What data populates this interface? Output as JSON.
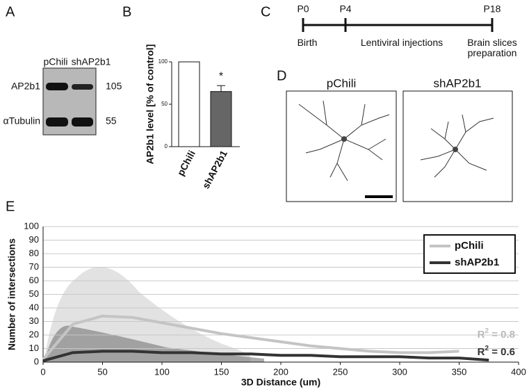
{
  "panel_labels": [
    "A",
    "B",
    "C",
    "D",
    "E"
  ],
  "blot": {
    "lanes": [
      "pChili",
      "shAP2b1"
    ],
    "bands": [
      {
        "name": "AP2b1",
        "size": "105"
      },
      {
        "name": "αTubulin",
        "size": "55"
      }
    ]
  },
  "timeline": {
    "points": [
      {
        "label": "P0",
        "event": "Birth"
      },
      {
        "label": "P4",
        "event": "Lentiviral injections"
      },
      {
        "label": "P18",
        "event": "Brain slices preparation"
      }
    ]
  },
  "images": {
    "titles": [
      "pChili",
      "shAP2b1"
    ]
  },
  "chart_data": [
    {
      "type": "bar",
      "ylabel": "AP2b1 level [% of control]",
      "categories": [
        "pChili",
        "shAP2b1"
      ],
      "values": [
        100,
        65
      ],
      "errors": [
        0,
        7
      ],
      "colors": [
        "#ffffff",
        "#666666"
      ],
      "ylim": [
        0,
        100
      ],
      "yticks": [
        0,
        50,
        100
      ],
      "annotation": "*"
    },
    {
      "type": "line",
      "xlabel": "3D Distance (um)",
      "ylabel": "Number of intersections",
      "xlim": [
        0,
        400
      ],
      "xticks": [
        0,
        50,
        100,
        150,
        200,
        250,
        300,
        350,
        400
      ],
      "ylim": [
        0,
        100
      ],
      "yticks": [
        0,
        10,
        20,
        30,
        40,
        50,
        60,
        70,
        80,
        90,
        100
      ],
      "grid": true,
      "legend": "top-right",
      "series": [
        {
          "name": "pChili",
          "color": "#c4c4c4",
          "x": [
            0,
            25,
            50,
            75,
            100,
            125,
            150,
            175,
            200,
            225,
            250,
            275,
            300,
            325,
            350
          ],
          "values": [
            2,
            28,
            34,
            33,
            29,
            25,
            21,
            18,
            15,
            12,
            10,
            8,
            7,
            7,
            8
          ]
        },
        {
          "name": "shAP2b1",
          "color": "#333333",
          "x": [
            0,
            25,
            50,
            75,
            100,
            125,
            150,
            175,
            200,
            225,
            250,
            275,
            300,
            325,
            350,
            375
          ],
          "values": [
            1,
            7,
            8,
            8,
            7,
            7,
            6,
            6,
            5,
            5,
            4,
            4,
            4,
            3,
            3,
            1.5
          ]
        }
      ],
      "annotations": [
        {
          "base": "R",
          "sup": "2",
          "text": " = 0.8",
          "color": "#bbbbbb"
        },
        {
          "base": "R",
          "sup": "2",
          "text": " = 0.6",
          "color": "#333333"
        }
      ]
    }
  ]
}
